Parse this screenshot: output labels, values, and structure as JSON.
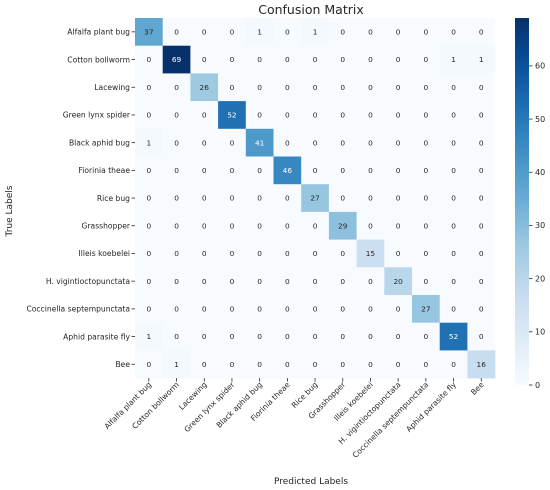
{
  "chart_data": {
    "type": "heatmap",
    "title": "Confusion Matrix",
    "xlabel": "Predicted Labels",
    "ylabel": "True Labels",
    "row_labels": [
      "Alfalfa plant bug",
      "Cotton bollworm",
      "Lacewing",
      "Green lynx spider",
      "Black aphid bug",
      "Fiorinia theae",
      "Rice bug",
      "Grasshopper",
      "Illeis koebelei",
      "H. vigintioctopunctata",
      "Coccinella septempunctata",
      "Aphid parasite fly",
      "Bee"
    ],
    "col_labels": [
      "Alfalfa plant bug",
      "Cotton bollworm",
      "Lacewing",
      "Green lynx spider",
      "Black aphid bug",
      "Fiorinia theae",
      "Rice bug",
      "Grasshopper",
      "Illeis koebelei",
      "H. vigintioctopunctata",
      "Coccinella septempunctata",
      "Aphid parasite fly",
      "Bee"
    ],
    "values": [
      [
        37,
        0,
        0,
        0,
        1,
        0,
        1,
        0,
        0,
        0,
        0,
        0,
        0
      ],
      [
        0,
        69,
        0,
        0,
        0,
        0,
        0,
        0,
        0,
        0,
        0,
        1,
        1
      ],
      [
        0,
        0,
        26,
        0,
        0,
        0,
        0,
        0,
        0,
        0,
        0,
        0,
        0
      ],
      [
        0,
        0,
        0,
        52,
        0,
        0,
        0,
        0,
        0,
        0,
        0,
        0,
        0
      ],
      [
        1,
        0,
        0,
        0,
        41,
        0,
        0,
        0,
        0,
        0,
        0,
        0,
        0
      ],
      [
        0,
        0,
        0,
        0,
        0,
        46,
        0,
        0,
        0,
        0,
        0,
        0,
        0
      ],
      [
        0,
        0,
        0,
        0,
        0,
        0,
        27,
        0,
        0,
        0,
        0,
        0,
        0
      ],
      [
        0,
        0,
        0,
        0,
        0,
        0,
        0,
        29,
        0,
        0,
        0,
        0,
        0
      ],
      [
        0,
        0,
        0,
        0,
        0,
        0,
        0,
        0,
        15,
        0,
        0,
        0,
        0
      ],
      [
        0,
        0,
        0,
        0,
        0,
        0,
        0,
        0,
        0,
        20,
        0,
        0,
        0
      ],
      [
        0,
        0,
        0,
        0,
        0,
        0,
        0,
        0,
        0,
        0,
        27,
        0,
        0
      ],
      [
        1,
        0,
        0,
        0,
        0,
        0,
        0,
        0,
        0,
        0,
        0,
        52,
        0
      ],
      [
        0,
        1,
        0,
        0,
        0,
        0,
        0,
        0,
        0,
        0,
        0,
        0,
        16
      ]
    ],
    "color_scale": {
      "name": "Blues",
      "min": 0,
      "max": 69,
      "ticks": [
        0,
        10,
        20,
        30,
        40,
        50,
        60
      ]
    },
    "colorbar": "right",
    "grid": false
  }
}
